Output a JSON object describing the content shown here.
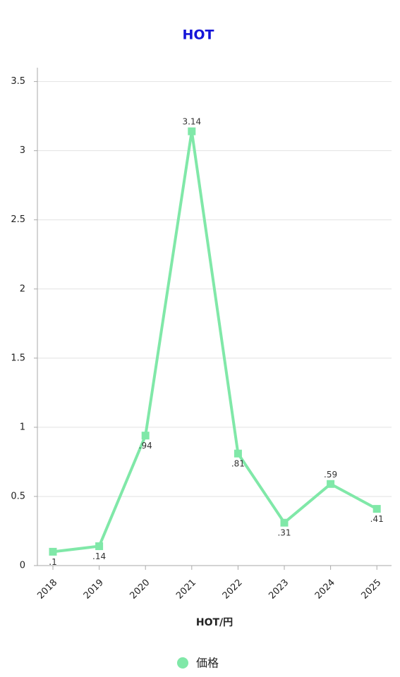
{
  "chart_data": {
    "type": "line",
    "title": "HOT",
    "x_label": "HOT/円",
    "categories": [
      "2018",
      "2019",
      "2020",
      "2021",
      "2022",
      "2023",
      "2024",
      "2025"
    ],
    "series": [
      {
        "name": "価格",
        "color": "#80e8a8",
        "values": [
          0.1,
          0.14,
          0.94,
          3.14,
          0.81,
          0.31,
          0.59,
          0.41
        ],
        "value_labels": [
          ".1",
          ".14",
          ".94",
          "3.14",
          ".81",
          ".31",
          ".59",
          ".41"
        ]
      }
    ],
    "ylim": [
      0,
      3.6
    ],
    "yticks": [
      0,
      0.5,
      1,
      1.5,
      2,
      2.5,
      3,
      3.5
    ],
    "grid": true,
    "legend": "bottom"
  }
}
